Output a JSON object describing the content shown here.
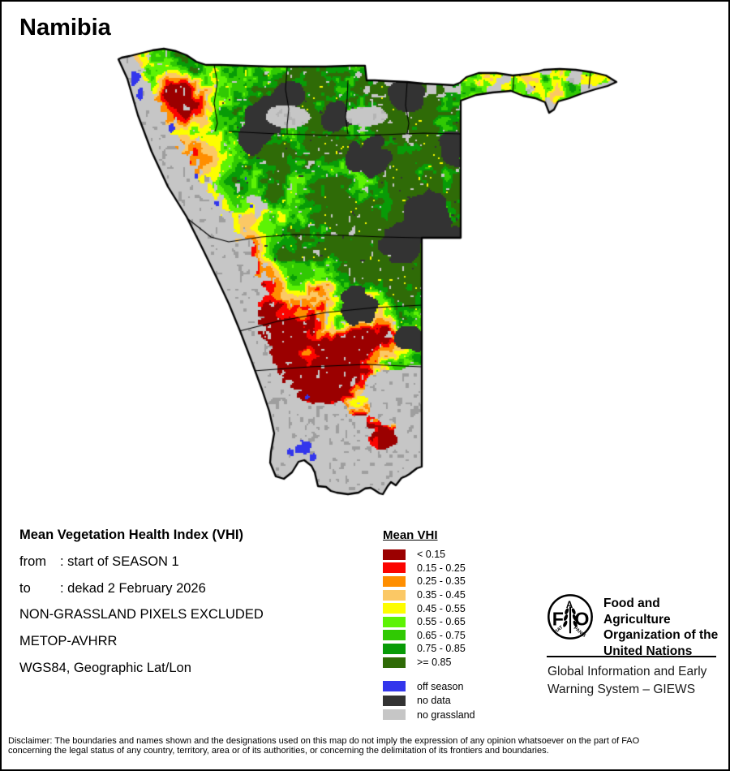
{
  "title": "Namibia",
  "info": {
    "heading": "Mean Vegetation Health Index (VHI)",
    "from_label": "from",
    "from_value": ": start of SEASON 1",
    "to_label": "to",
    "to_value": ": dekad 2 February 2026",
    "line4": "NON-GRASSLAND PIXELS EXCLUDED",
    "line5": "METOP-AVHRR",
    "line6": "WGS84, Geographic Lat/Lon"
  },
  "legend": {
    "title": "Mean VHI",
    "classes": [
      {
        "label": "< 0.15",
        "color": "#9B0000"
      },
      {
        "label": "0.15 - 0.25",
        "color": "#FB0400"
      },
      {
        "label": "0.25 - 0.35",
        "color": "#FF8E00"
      },
      {
        "label": "0.35 - 0.45",
        "color": "#FBC865"
      },
      {
        "label": "0.45 - 0.55",
        "color": "#FDFD00"
      },
      {
        "label": "0.55 - 0.65",
        "color": "#5DF304"
      },
      {
        "label": "0.65 - 0.75",
        "color": "#30C903"
      },
      {
        "label": "0.75 - 0.85",
        "color": "#089B07"
      },
      {
        "label": ">= 0.85",
        "color": "#2F6B07"
      }
    ],
    "extras": [
      {
        "label": "off season",
        "color": "#3336EC"
      },
      {
        "label": "no data",
        "color": "#333333"
      },
      {
        "label": "no grassland",
        "color": "#C6C6C6"
      }
    ]
  },
  "org": {
    "fao_name_lines": [
      "Food and Agriculture",
      "Organization of the",
      "United Nations"
    ],
    "giews_lines": [
      "Global Information and Early",
      "Warning System – GIEWS"
    ],
    "logo_f": "F",
    "logo_a": "A",
    "logo_o": "O",
    "fiat": "FIAT",
    "panis": "PANIS"
  },
  "disclaimer": {
    "line1": "Disclaimer: The boundaries and names shown and the designations used on this map do not imply the expression of any opinion whatsoever on the part of FAO",
    "line2": "concerning the legal status of any country, territory, area or of its authorities, or concerning the delimitation of its frontiers and boundaries."
  }
}
